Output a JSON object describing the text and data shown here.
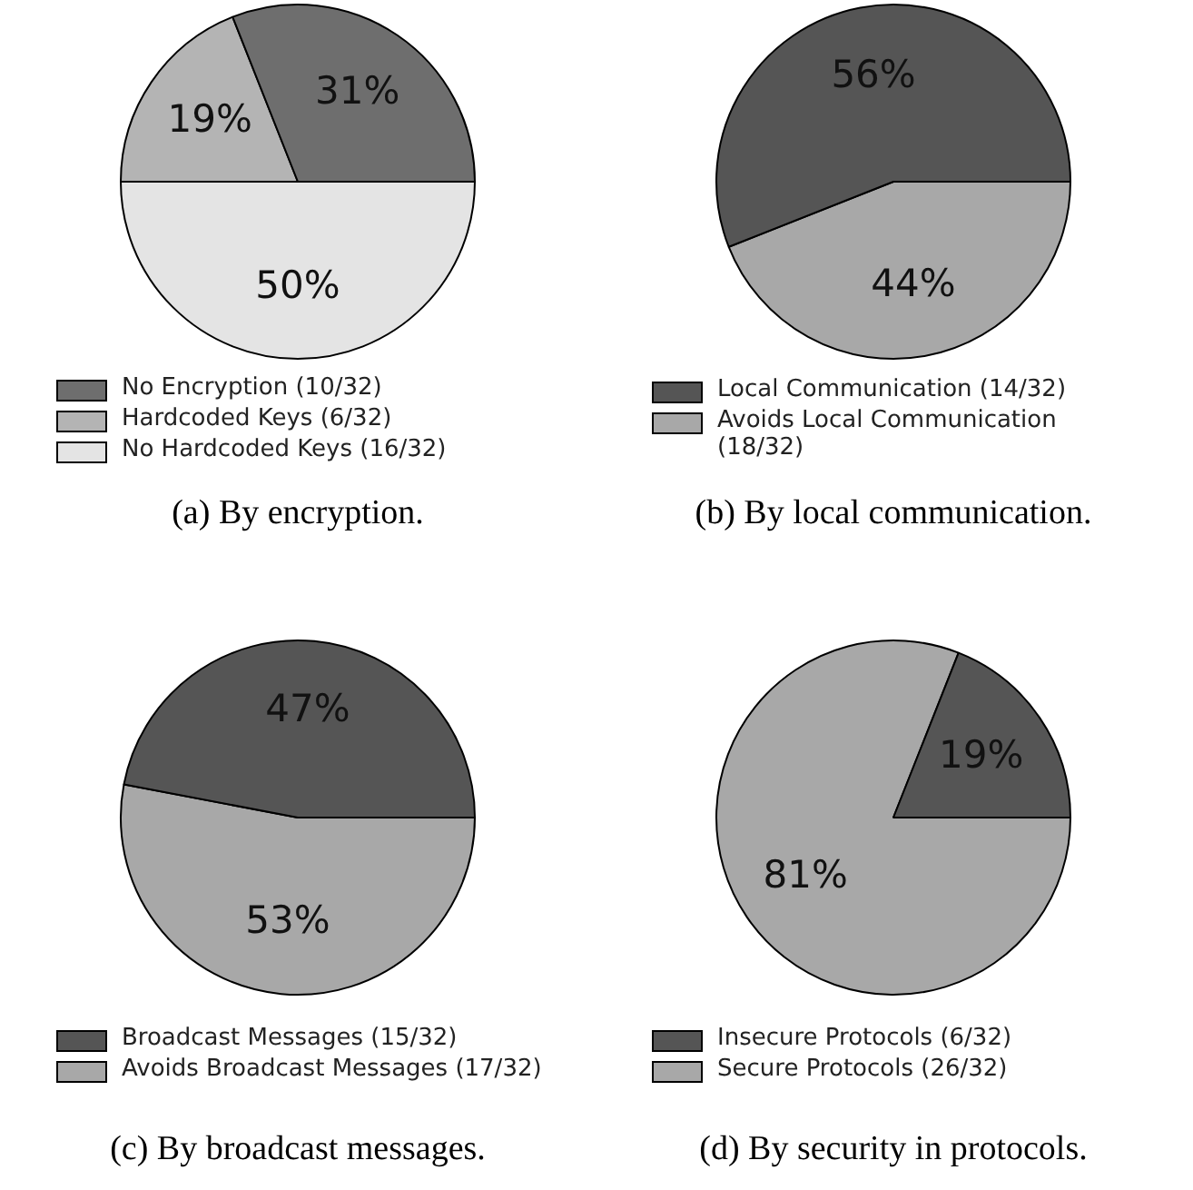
{
  "chart_data": [
    {
      "type": "pie",
      "title": "(a) By encryption.",
      "categories": [
        "No Encryption (10/32)",
        "Hardcoded Keys (6/32)",
        "No Hardcoded Keys (16/32)"
      ],
      "values": [
        31,
        19,
        50
      ],
      "colors": [
        "#6e6e6e",
        "#b4b4b4",
        "#e4e4e4"
      ],
      "value_labels": [
        "31%",
        "19%",
        "50%"
      ],
      "legend": "bottom"
    },
    {
      "type": "pie",
      "title": "(b) By local communication.",
      "categories": [
        "Local Communication (14/32)",
        "Avoids Local Communication (18/32)"
      ],
      "values": [
        56,
        44
      ],
      "colors": [
        "#555555",
        "#a8a8a8"
      ],
      "value_labels": [
        "56%",
        "44%"
      ],
      "legend": "bottom"
    },
    {
      "type": "pie",
      "title": "(c) By broadcast messages.",
      "categories": [
        "Broadcast Messages (15/32)",
        "Avoids Broadcast Messages (17/32)"
      ],
      "values": [
        47,
        53
      ],
      "colors": [
        "#555555",
        "#a8a8a8"
      ],
      "value_labels": [
        "47%",
        "53%"
      ],
      "legend": "bottom"
    },
    {
      "type": "pie",
      "title": "(d) By security in protocols.",
      "categories": [
        "Insecure Protocols (6/32)",
        "Secure Protocols (26/32)"
      ],
      "values": [
        19,
        81
      ],
      "colors": [
        "#555555",
        "#a8a8a8"
      ],
      "value_labels": [
        "19%",
        "81%"
      ],
      "legend": "bottom"
    }
  ]
}
